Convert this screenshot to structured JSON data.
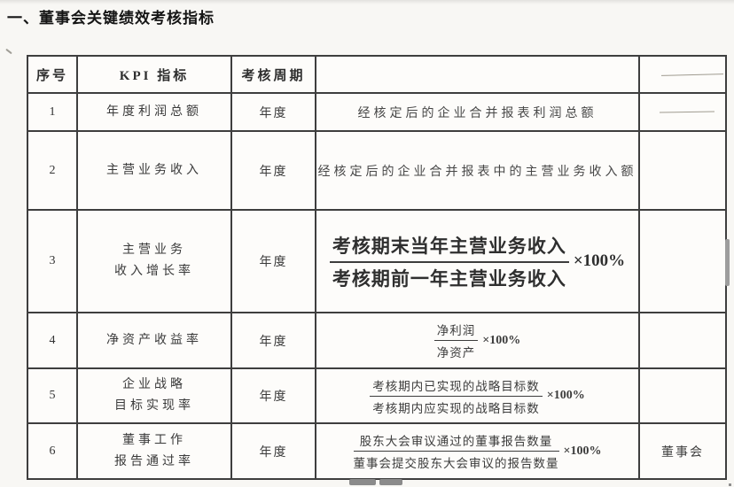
{
  "page": {
    "title": "一、董事会关键绩效考核指标"
  },
  "table": {
    "headers": [
      {
        "label": "序号"
      },
      {
        "label": "KPI 指标"
      },
      {
        "label": "考核周期"
      },
      {
        "label": ""
      },
      {
        "label": "",
        "dash": true
      }
    ],
    "rows": [
      {
        "no": "1",
        "kpi_lines": [
          "年度利润总额"
        ],
        "cycle": "年度",
        "desc_text": "经核定后的企业合并报表利润总额",
        "right_dash": true,
        "right_text": ""
      },
      {
        "no": "2",
        "kpi_lines": [
          "主营业务收入"
        ],
        "cycle": "年度",
        "desc_text": "经核定后的企业合并报表中的主营业务收入额",
        "right_text": ""
      },
      {
        "no": "3",
        "kpi_lines": [
          "主营业务",
          "收入增长率"
        ],
        "cycle": "年度",
        "formula": {
          "numerator": "考核期末当年主营业务收入",
          "denominator": "考核期前一年主营业务收入",
          "suffix": "×100%"
        },
        "formula_size": "large",
        "right_text": ""
      },
      {
        "no": "4",
        "kpi_lines": [
          "净资产收益率"
        ],
        "cycle": "年度",
        "formula": {
          "numerator": "净利润",
          "denominator": "净资产",
          "suffix": "×100%"
        },
        "right_text": ""
      },
      {
        "no": "5",
        "kpi_lines": [
          "企业战略",
          "目标实现率"
        ],
        "cycle": "年度",
        "formula": {
          "numerator": "考核期内已实现的战略目标数",
          "denominator": "考核期内应实现的战略目标数",
          "suffix": "×100%"
        },
        "right_text": ""
      },
      {
        "no": "6",
        "kpi_lines": [
          "董事工作",
          "报告通过率"
        ],
        "cycle": "年度",
        "formula": {
          "numerator": "股东大会审议通过的董事报告数量",
          "denominator": "董事会提交股东大会审议的报告数量",
          "suffix": "×100%"
        },
        "right_text": "董事会"
      }
    ]
  }
}
